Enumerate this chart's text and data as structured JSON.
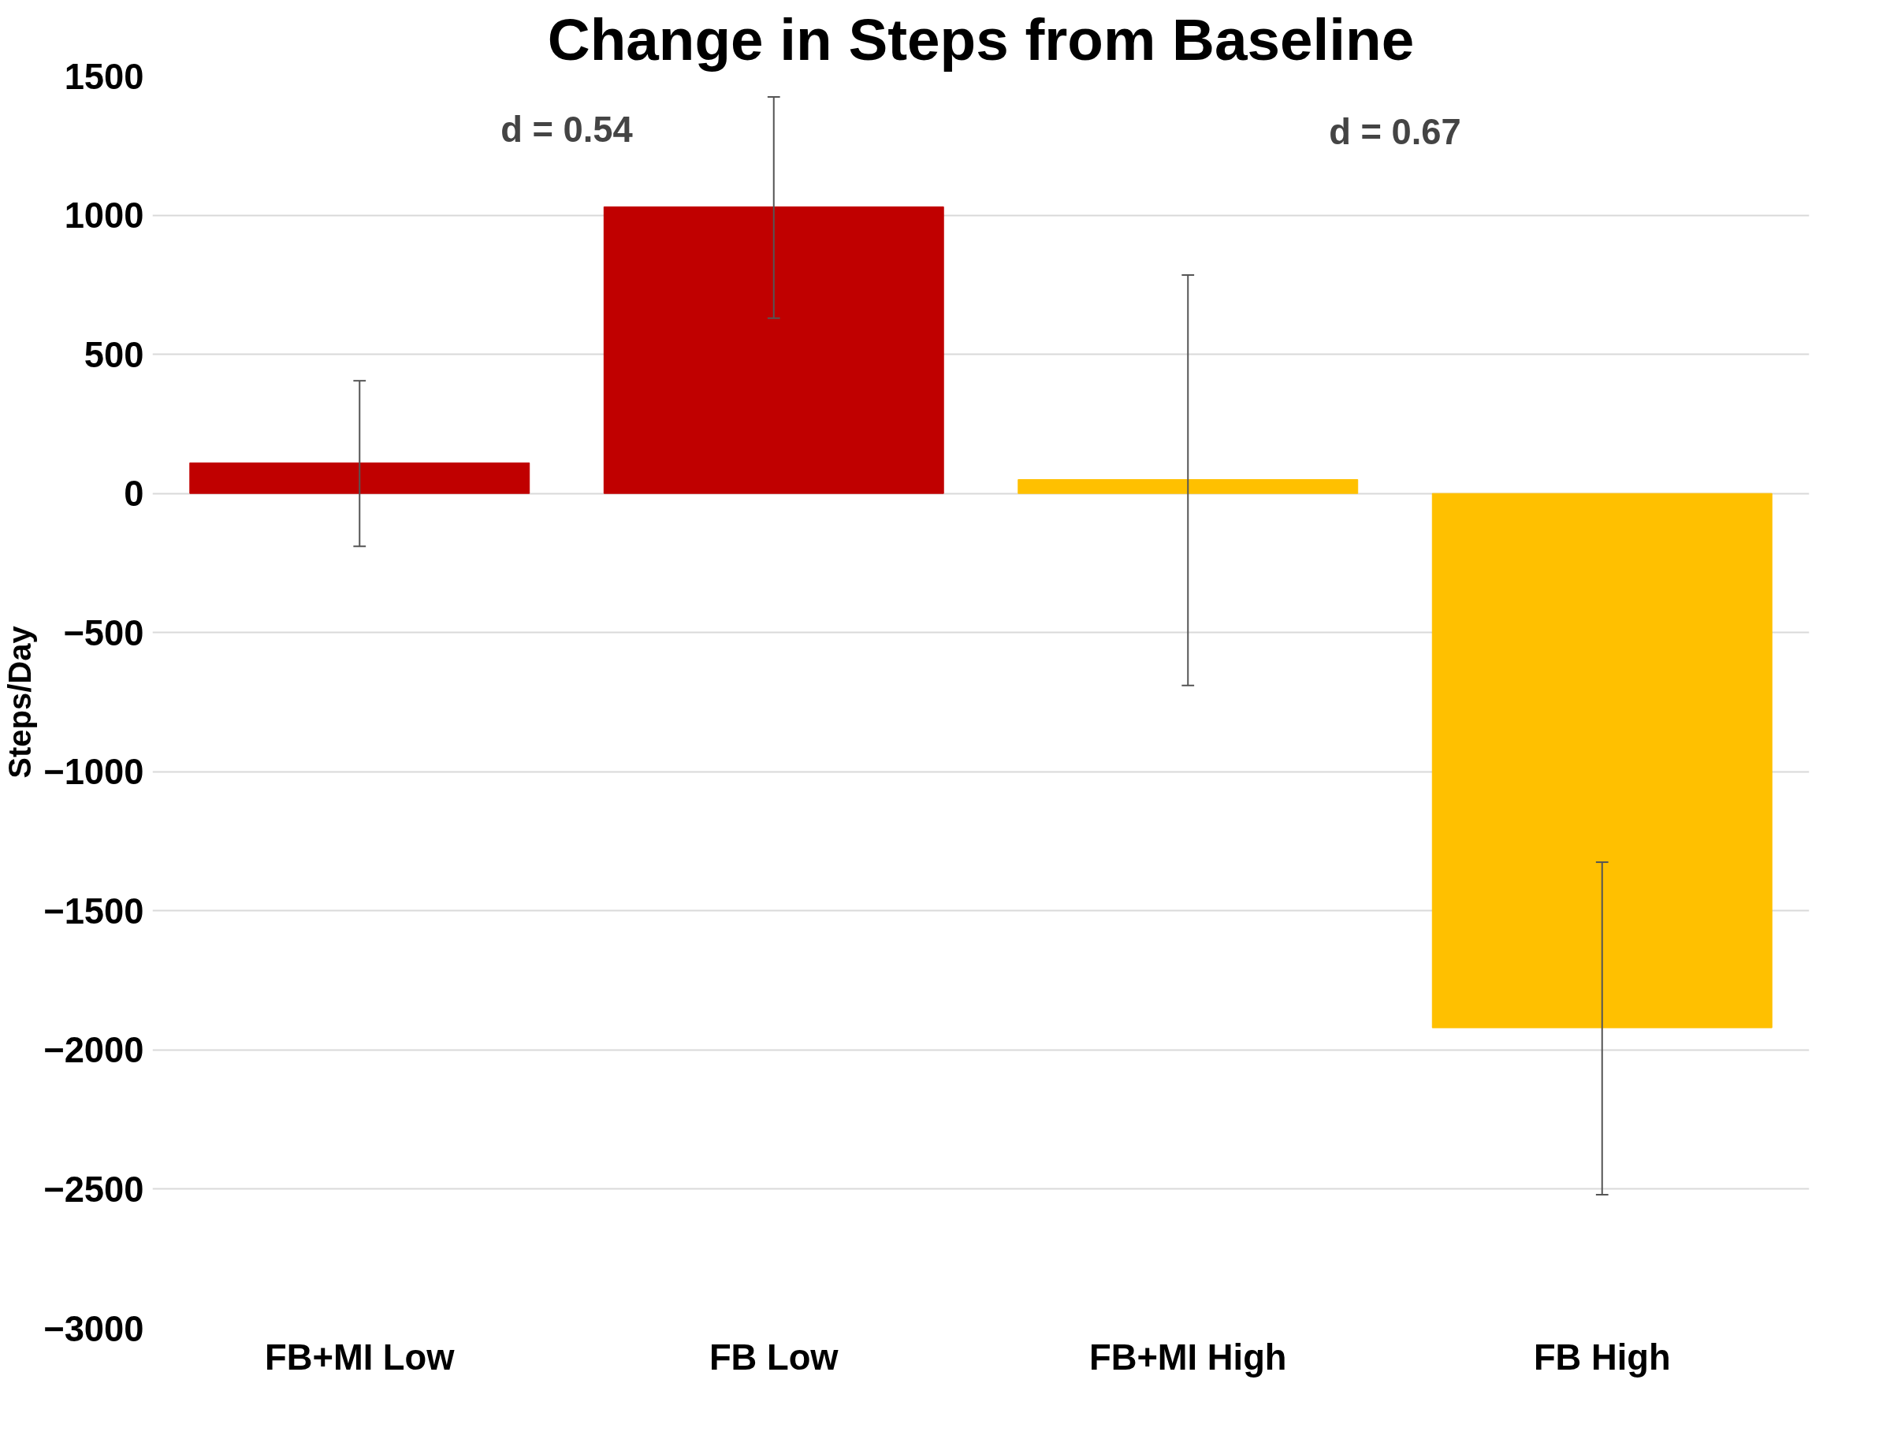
{
  "chart_data": {
    "type": "bar",
    "title": "Change in Steps from Baseline",
    "ylabel": "Steps/Day",
    "categories": [
      "FB+MI Low",
      "FB Low",
      "FB+MI High",
      "FB High"
    ],
    "values": [
      110,
      1030,
      50,
      -1920
    ],
    "colors": [
      "#c00000",
      "#c00000",
      "#ffc000",
      "#ffc000"
    ],
    "errors": [
      [
        -190,
        405
      ],
      [
        630,
        1425
      ],
      [
        -690,
        785
      ],
      [
        -2520,
        -1325
      ]
    ],
    "annotations": [
      "d = 0.54",
      "d = 0.67"
    ],
    "ylim": [
      -3000,
      1500
    ],
    "yticks": [
      -3000,
      -2500,
      -2000,
      -1500,
      -1000,
      -500,
      0,
      500,
      1000,
      1500
    ],
    "grid": "y"
  }
}
